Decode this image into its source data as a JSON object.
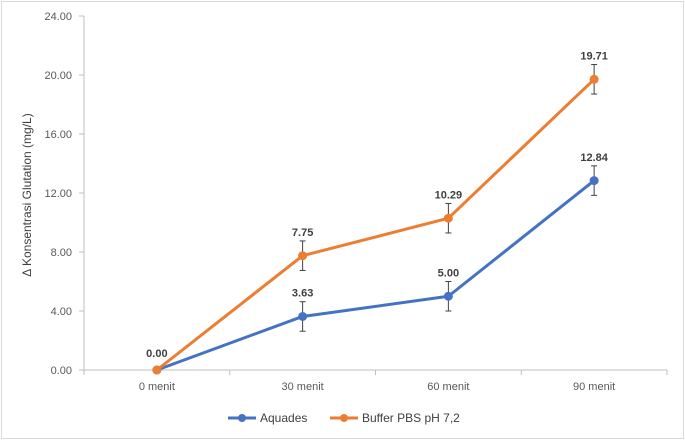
{
  "chart_data": {
    "type": "line",
    "categories": [
      "0 menit",
      "30 menit",
      "60 menit",
      "90 menit"
    ],
    "series": [
      {
        "name": "Aquades",
        "values": [
          0.0,
          3.63,
          5.0,
          12.84
        ],
        "value_labels": [
          "",
          "3.63",
          "5.00",
          "12.84"
        ],
        "error": [
          0.0,
          1.0,
          1.0,
          1.0
        ],
        "color": "#4472C4"
      },
      {
        "name": "Buffer PBS pH 7,2",
        "values": [
          0.0,
          7.75,
          10.29,
          19.71
        ],
        "value_labels": [
          "0.00",
          "7.75",
          "10.29",
          "19.71"
        ],
        "error": [
          0.0,
          1.0,
          1.0,
          1.0
        ],
        "color": "#ED7D31"
      }
    ],
    "title": "",
    "xlabel": "",
    "ylabel": "Δ Konsentrasi Glutation (mg/L)",
    "ylim": [
      0,
      24
    ],
    "yticks": [
      "0.00",
      "4.00",
      "8.00",
      "12.00",
      "16.00",
      "20.00",
      "24.00"
    ],
    "grid": false,
    "legend": "bottom"
  }
}
